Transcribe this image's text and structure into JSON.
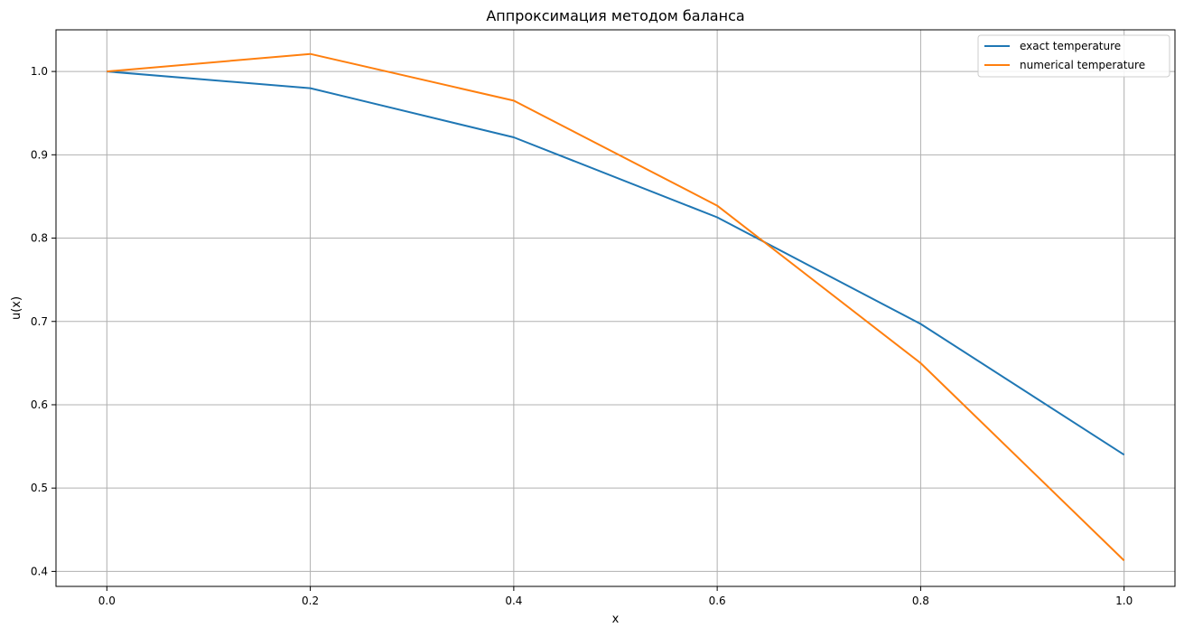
{
  "chart_data": {
    "type": "line",
    "title": "Аппроксимация методом баланса",
    "xlabel": "x",
    "ylabel": "u(x)",
    "xlim": [
      -0.05,
      1.05
    ],
    "ylim": [
      0.382,
      1.05
    ],
    "grid": true,
    "legend_position": "top-right",
    "x_ticks": [
      0.0,
      0.2,
      0.4,
      0.6,
      0.8,
      1.0
    ],
    "x_tick_labels": [
      "0.0",
      "0.2",
      "0.4",
      "0.6",
      "0.8",
      "1.0"
    ],
    "y_ticks": [
      0.4,
      0.5,
      0.6,
      0.7,
      0.8,
      0.9,
      1.0
    ],
    "y_tick_labels": [
      "0.4",
      "0.5",
      "0.6",
      "0.7",
      "0.8",
      "0.9",
      "1.0"
    ],
    "x": [
      0.0,
      0.2,
      0.4,
      0.6,
      0.8,
      1.0
    ],
    "series": [
      {
        "name": "exact temperature",
        "color": "#1f77b4",
        "values": [
          1.0,
          0.98,
          0.921,
          0.825,
          0.697,
          0.54
        ]
      },
      {
        "name": "numerical temperature",
        "color": "#ff7f0e",
        "values": [
          1.0,
          1.021,
          0.965,
          0.839,
          0.65,
          0.413
        ]
      }
    ]
  }
}
